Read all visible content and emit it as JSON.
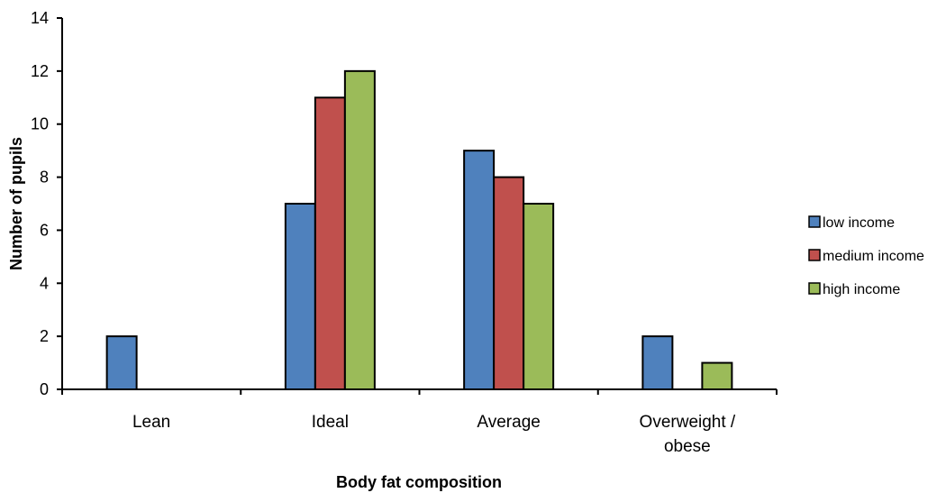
{
  "chart_data": {
    "type": "bar",
    "title": "",
    "xlabel": "Body fat composition",
    "ylabel": "Number of pupils",
    "ylim": [
      0,
      14
    ],
    "yticks": [
      0,
      2,
      4,
      6,
      8,
      10,
      12,
      14
    ],
    "grid": false,
    "legend_position": "right",
    "categories": [
      "Lean",
      "Ideal",
      "Average",
      "Overweight / obese"
    ],
    "category_lines": [
      [
        "Lean"
      ],
      [
        "Ideal"
      ],
      [
        "Average"
      ],
      [
        "Overweight /",
        "obese"
      ]
    ],
    "series": [
      {
        "name": "low income",
        "color": "#4f81bd",
        "values": [
          2,
          7,
          9,
          2
        ]
      },
      {
        "name": "medium income",
        "color": "#c0504d",
        "values": [
          0,
          11,
          8,
          0
        ]
      },
      {
        "name": "high income",
        "color": "#9bbb59",
        "values": [
          0,
          12,
          7,
          1
        ]
      }
    ]
  }
}
